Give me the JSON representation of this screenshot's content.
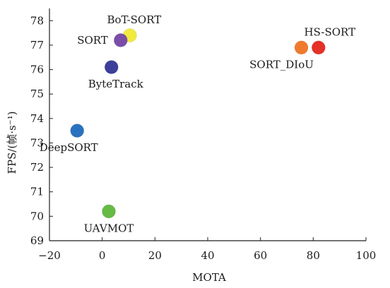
{
  "chart_data": {
    "type": "scatter",
    "title": "",
    "xlabel": "MOTA",
    "ylabel": "FPS/(帧·s⁻¹)",
    "xlim": [
      -20,
      100
    ],
    "ylim": [
      69,
      78.5
    ],
    "x_ticks": [
      -20,
      0,
      20,
      40,
      60,
      80,
      100
    ],
    "y_ticks": [
      69,
      70,
      71,
      72,
      73,
      74,
      75,
      76,
      77,
      78
    ],
    "grid": false,
    "points": [
      {
        "label": "BoT-SORT",
        "x": 10.5,
        "y": 77.4,
        "color": "#f2ea3c",
        "label_pos": "above"
      },
      {
        "label": "SORT",
        "x": 7,
        "y": 77.2,
        "color": "#7a4ea8",
        "label_pos": "left"
      },
      {
        "label": "ByteTrack",
        "x": 3.5,
        "y": 76.1,
        "color": "#3b3f9a",
        "label_pos": "below"
      },
      {
        "label": "DeepSORT",
        "x": -9.5,
        "y": 73.5,
        "color": "#2a72c0",
        "label_pos": "below"
      },
      {
        "label": "UAVMOT",
        "x": 2.5,
        "y": 70.2,
        "color": "#66bb44",
        "label_pos": "below"
      },
      {
        "label": "SORT_DIoU",
        "x": 75.5,
        "y": 76.9,
        "color": "#f07a2c",
        "label_pos": "below"
      },
      {
        "label": "HS-SORT",
        "x": 82,
        "y": 76.9,
        "color": "#e53127",
        "label_pos": "above"
      }
    ]
  }
}
